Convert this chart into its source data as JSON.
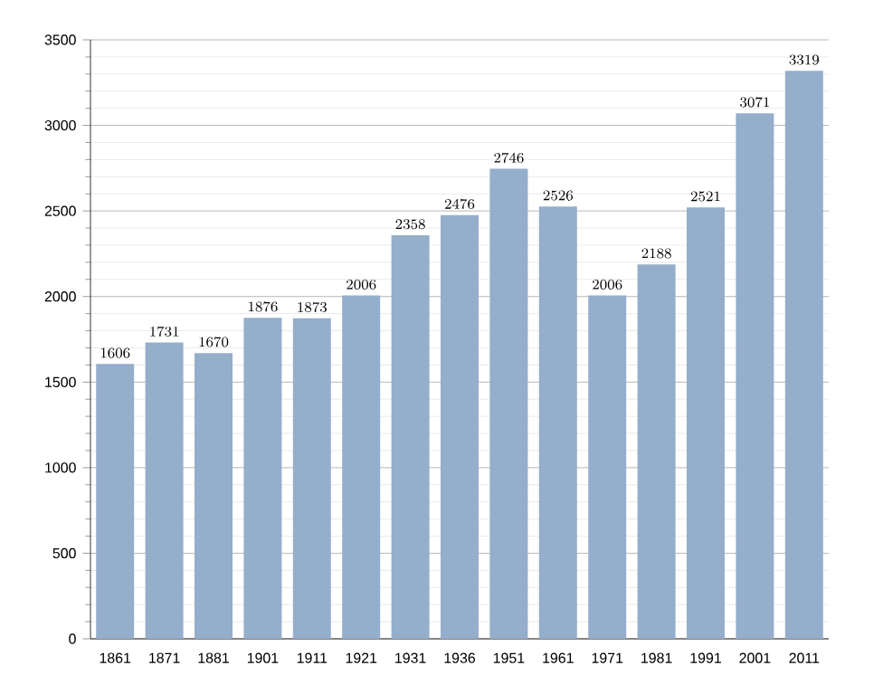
{
  "chart_data": {
    "type": "bar",
    "categories": [
      "1861",
      "1871",
      "1881",
      "1901",
      "1911",
      "1921",
      "1931",
      "1936",
      "1951",
      "1961",
      "1971",
      "1981",
      "1991",
      "2001",
      "2011"
    ],
    "values": [
      1606,
      1731,
      1670,
      1876,
      1873,
      2006,
      2358,
      2476,
      2746,
      2526,
      2006,
      2188,
      2521,
      3071,
      3319
    ],
    "color": "#94aecb",
    "ylim": [
      0,
      3500
    ],
    "yticks": [
      0,
      500,
      1000,
      1500,
      2000,
      2500,
      3000,
      3500
    ],
    "grid": "y",
    "data_labels": true
  }
}
